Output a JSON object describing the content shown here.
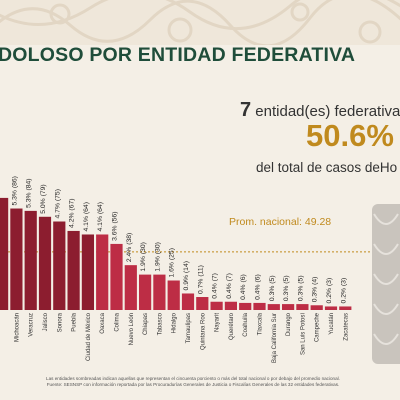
{
  "title": "DOLOSO POR ENTIDAD FEDERATIVA",
  "summary": {
    "count": "7",
    "label": "entidad(es) federativa",
    "percent": "50.6%",
    "subtitle": "del total de casos deHo"
  },
  "colors": {
    "highlight": "#8c1d2f",
    "normal": "#bd2d45",
    "avg_line": "#c08a1e",
    "title": "#1f4d3a",
    "percent": "#c08a1e"
  },
  "chart_data": {
    "type": "bar",
    "average": {
      "label": "Prom. nacional: 49.28",
      "value": 49.28
    },
    "ylim": [
      0,
      100
    ],
    "highlighted_count": 7,
    "categories": [
      "",
      "Michoacán",
      "Veracruz",
      "Jalisco",
      "Sonora",
      "Puebla",
      "Ciudad de México",
      "Oaxaca",
      "Colima",
      "Nuevo León",
      "Chiapas",
      "Tabasco",
      "Hidalgo",
      "Tamaulipas",
      "Quintana Roo",
      "Nayarit",
      "Querétaro",
      "Coahuila",
      "Tlaxcala",
      "Baja California Sur",
      "Durango",
      "San Luis Potosí",
      "Campeche",
      "Yucatán",
      "Zacatecas"
    ],
    "values": [
      95,
      86,
      84,
      79,
      75,
      67,
      64,
      64,
      56,
      38,
      30,
      30,
      25,
      14,
      11,
      7,
      7,
      6,
      6,
      5,
      5,
      5,
      4,
      3,
      3
    ],
    "data_labels": [
      "",
      "5.3% (86)",
      "5.3% (84)",
      "5.0% (79)",
      "4.7% (75)",
      "4.2% (67)",
      "4.1% (64)",
      "4.1% (64)",
      "3.6% (56)",
      "2.4% (38)",
      "1.9% (30)",
      "1.9% (30)",
      "1.6% (25)",
      "0.9% (14)",
      "0.7% (11)",
      "0.4% (7)",
      "0.4% (7)",
      "0.4% (6)",
      "0.4% (6)",
      "0.3% (5)",
      "0.3% (5)",
      "0.3% (5)",
      "0.3% (4)",
      "0.2% (3)",
      "0.2% (3)"
    ]
  },
  "footnote": {
    "line1": "Las entidades sombreadas indican aquellas que representan el cincuenta porciento o más del total nacional o por debajo del promedio nacional.",
    "line2": "Fuente: SESNSP con información reportada por las Procuradurías Generales de Justicia o Fiscalías Generales de las 32 entidades federativas."
  }
}
